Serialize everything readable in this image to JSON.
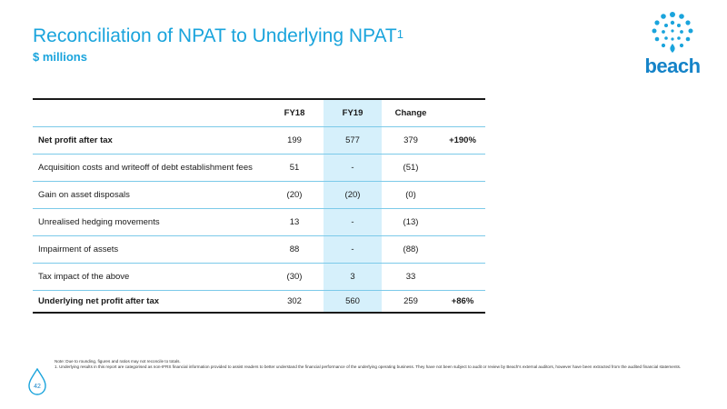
{
  "header": {
    "title": "Reconciliation of NPAT to Underlying NPAT",
    "title_sup": "1",
    "subtitle": "$ millions"
  },
  "logo": {
    "text": "beach",
    "icon": "beach-dots-icon",
    "color": "#1583c8"
  },
  "table": {
    "columns": [
      "FY18",
      "FY19",
      "Change"
    ],
    "rows": [
      {
        "label": "Net profit after tax",
        "fy18": "199",
        "fy19": "577",
        "change": "379",
        "pct": "+190%",
        "bold": true
      },
      {
        "label": "Acquisition costs and writeoff of debt establishment fees",
        "fy18": "51",
        "fy19": "-",
        "change": "(51)",
        "pct": ""
      },
      {
        "label": "Gain on asset disposals",
        "fy18": "(20)",
        "fy19": "(20)",
        "change": "(0)",
        "pct": ""
      },
      {
        "label": "Unrealised hedging movements",
        "fy18": "13",
        "fy19": "-",
        "change": "(13)",
        "pct": ""
      },
      {
        "label": "Impairment of assets",
        "fy18": "88",
        "fy19": "-",
        "change": "(88)",
        "pct": ""
      },
      {
        "label": "Tax impact of the above",
        "fy18": "(30)",
        "fy19": "3",
        "change": "33",
        "pct": ""
      },
      {
        "label": "Underlying net profit after tax",
        "fy18": "302",
        "fy19": "560",
        "change": "259",
        "pct": "+86%",
        "bold": true
      }
    ]
  },
  "notes": {
    "line1": "Note: Due to rounding, figures and ratios may not reconcile to totals.",
    "line2": "1. Underlying results in this report are categorised as non-IFRS financial information provided to assist readers to better understand the financial performance of the underlying operating business. They have not been subject to audit or review by Beach's external auditors, however have been extracted from the audited financial statements."
  },
  "footer": {
    "page_number": "42",
    "drop_icon": "water-drop-icon"
  },
  "colors": {
    "accent": "#1aa4dc",
    "highlight": "#d6f0fb",
    "rule": "#7ccae9"
  }
}
